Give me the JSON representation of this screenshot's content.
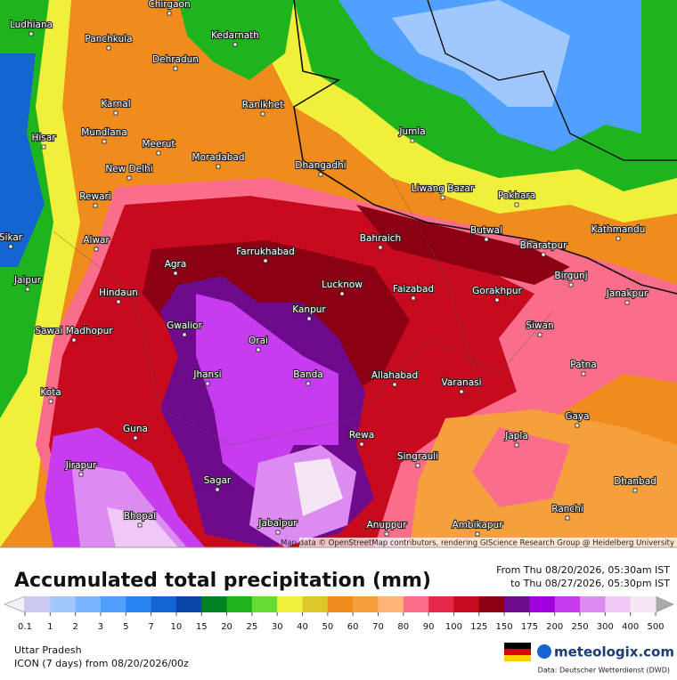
{
  "map": {
    "attribution": "Map data © OpenStreetMap contributors, rendering GIScience Research Group @ Heidelberg University",
    "cities": [
      "Chirgaon",
      "Ludhiana",
      "Panchkula",
      "Kedarnath",
      "Dehradun",
      "Karnal",
      "Ranikhet",
      "Mundlana",
      "Hisar",
      "Jumla",
      "Meerut",
      "Moradabad",
      "Dhangadhi",
      "New Delhi",
      "Liwang Bazar",
      "Pokhara",
      "Rewari",
      "Kathmandu",
      "Sikar",
      "Bahraich",
      "Butwal",
      "Alwar",
      "Bharatpur",
      "Farrukhabad",
      "Agra",
      "Birgunj",
      "Jaipur",
      "Lucknow",
      "Faizabad",
      "Gorakhpur",
      "Hindaun",
      "Janakpur",
      "Kanpur",
      "Gwalior",
      "Siwan",
      "Sawai Madhopur",
      "Orai",
      "Patna",
      "Jhansi",
      "Banda",
      "Allahabad",
      "Varanasi",
      "Kota",
      "Gaya",
      "Guna",
      "Rewa",
      "Japla",
      "Singrauli",
      "Jirapur",
      "Sagar",
      "Dhanbad",
      "Ranchi",
      "Bhopal",
      "Jabalpur",
      "Anuppur",
      "Ambikapur"
    ]
  },
  "header": {
    "title": "Accumulated total precipitation (mm)",
    "from": "From Thu 08/20/2026, 05:30am IST",
    "to": "to Thu 08/27/2026, 05:30pm IST"
  },
  "legend": {
    "levels": [
      0.1,
      1,
      2,
      3,
      5,
      7,
      10,
      15,
      20,
      25,
      30,
      40,
      50,
      60,
      70,
      80,
      90,
      100,
      125,
      150,
      175,
      200,
      250,
      300,
      400,
      500
    ],
    "colors": [
      "#c8c8f0",
      "#a0c8ff",
      "#78b4ff",
      "#50a0ff",
      "#2882f0",
      "#1464d2",
      "#0a46aa",
      "#00821e",
      "#1eb41e",
      "#64dc32",
      "#f0f03c",
      "#dcc828",
      "#f08c1e",
      "#f5a03c",
      "#ffb478",
      "#fa6e8c",
      "#e6284a",
      "#c80a1e",
      "#8c0014",
      "#6e0a8c",
      "#a000dc",
      "#c83cf0",
      "#dc8cf0",
      "#f0c8f5",
      "#f5e6f5"
    ]
  },
  "footer": {
    "region": "Uttar Pradesh",
    "model": "ICON (7 days) from 08/20/2026/00z",
    "brand": "meteologix.com",
    "source": "Data: Deutscher Wetterdienst (DWD)"
  }
}
